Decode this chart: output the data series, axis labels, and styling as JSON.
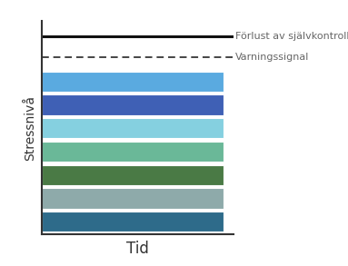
{
  "title": "",
  "xlabel": "Tid",
  "ylabel": "Stressnivå",
  "bar_colors": [
    "#2e6b8a",
    "#8eaaaa",
    "#4a7a45",
    "#6ab898",
    "#85d0e0",
    "#3f60b5",
    "#5aaae0"
  ],
  "solid_line_label": "Förlust av självkontroll och kaos",
  "dashed_line_label": "Varningssignal",
  "background_color": "#ffffff",
  "line_color": "#111111",
  "dashed_color": "#444444",
  "annotation_color": "#666666",
  "font_size_xlabel": 12,
  "font_size_ylabel": 10,
  "font_size_annotations": 8.0
}
